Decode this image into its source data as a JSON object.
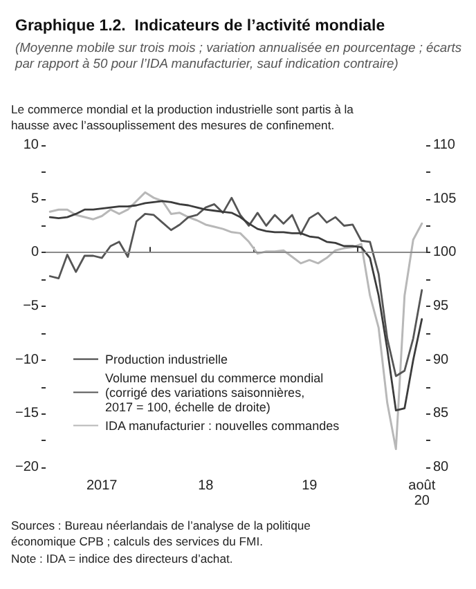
{
  "chart_data": {
    "type": "line",
    "title": "Graphique 1.2.  Indicateurs de l’activité mondiale",
    "subtitle": "(Moyenne mobile sur trois mois ; variation annualisée en pourcentage ; écarts par rapport à 50 pour l’IDA manufacturier, sauf indication contraire)",
    "annotations": [
      "Le commerce mondial et la production industrielle sont partis à la hausse avec l’assouplissement des mesures de confinement.",
      "Sources : Bureau néerlandais de l’analyse de la politique économique CPB ; calculs des services du FMI.",
      "Note : IDA = indice des directeurs d’achat."
    ],
    "categories": [
      null,
      null,
      null,
      null,
      null,
      null,
      "2017",
      null,
      null,
      null,
      null,
      null,
      null,
      null,
      null,
      null,
      null,
      null,
      "18",
      null,
      null,
      null,
      null,
      null,
      null,
      null,
      null,
      null,
      null,
      null,
      "19",
      null,
      null,
      null,
      null,
      null,
      null,
      null,
      null,
      null,
      null,
      null,
      null,
      "août 20"
    ],
    "series": [
      {
        "name": "Production industrielle",
        "color": "#3c3c3c",
        "values": [
          3.3,
          3.2,
          3.3,
          3.6,
          4.0,
          4.0,
          4.1,
          4.2,
          4.3,
          4.3,
          4.4,
          4.6,
          4.7,
          4.8,
          4.7,
          4.5,
          4.4,
          4.2,
          4.0,
          3.9,
          3.8,
          3.7,
          3.3,
          2.7,
          2.2,
          2.0,
          1.9,
          1.9,
          1.8,
          1.8,
          1.5,
          1.4,
          1.0,
          0.9,
          0.6,
          0.6,
          0.5,
          -0.5,
          -4,
          -9,
          -14.7,
          -14.5,
          -10,
          -6.2
        ]
      },
      {
        "name": "Volume mensuel du commerce mondial (corrigé des variations saisonnières, 2017 = 100, échelle de droite)",
        "color": "#555555",
        "axis": "y2",
        "values": [
          97.8,
          97.6,
          99.8,
          98.2,
          99.7,
          99.7,
          99.5,
          100.6,
          101.0,
          99.6,
          102.9,
          103.6,
          103.5,
          102.8,
          102.1,
          102.6,
          103.3,
          103.5,
          104.2,
          104.5,
          103.7,
          105.1,
          103.5,
          102.5,
          103.7,
          102.5,
          103.5,
          102.7,
          103.5,
          101.7,
          103.2,
          103.7,
          102.8,
          103.3,
          102.5,
          102.6,
          101.1,
          101.0,
          98,
          92,
          88.5,
          89,
          92,
          96.5
        ]
      },
      {
        "name": "IDA manufacturier : nouvelles commandes",
        "color": "#b8b8b8",
        "values": [
          3.8,
          4.0,
          4.0,
          3.5,
          3.3,
          3.1,
          3.4,
          4.0,
          3.6,
          4.0,
          4.8,
          5.6,
          5.1,
          4.8,
          3.6,
          3.7,
          3.3,
          3.0,
          2.6,
          2.4,
          2.2,
          1.9,
          1.8,
          1.0,
          -0.1,
          0.1,
          0.1,
          0.2,
          -0.4,
          -1.0,
          -0.7,
          -1.0,
          -0.5,
          0.2,
          0.4,
          0.5,
          0.8,
          -4,
          -7,
          -14,
          -18.3,
          -4,
          1.2,
          2.7
        ]
      }
    ],
    "ylim": [
      -20,
      10
    ],
    "yticks": [
      {
        "value": -20,
        "label": "−20"
      },
      {
        "value": -17.5,
        "label": null
      },
      {
        "value": -15,
        "label": "−15"
      },
      {
        "value": -12.5,
        "label": null
      },
      {
        "value": -10,
        "label": "−10"
      },
      {
        "value": -7.5,
        "label": null
      },
      {
        "value": -5,
        "label": "−5"
      },
      {
        "value": -2.5,
        "label": null
      },
      0,
      {
        "value": 2.5,
        "label": null
      },
      5,
      {
        "value": 7.5,
        "label": null
      },
      10
    ],
    "y2lim": [
      80,
      110
    ],
    "y2ticks": [
      80,
      {
        "value": 82.5,
        "label": null
      },
      85,
      {
        "value": 87.5,
        "label": null
      },
      90,
      {
        "value": 92.5,
        "label": null
      },
      95,
      {
        "value": 97.5,
        "label": null
      },
      100,
      {
        "value": 102.5,
        "label": null
      },
      105,
      {
        "value": 107.5,
        "label": null
      },
      110
    ],
    "ref_lines": [
      {
        "axis": "y",
        "value": 0,
        "color": "#8a8a8a"
      }
    ],
    "grid": false,
    "legend": "bottom left",
    "marker": "none",
    "line_style": "solid"
  }
}
